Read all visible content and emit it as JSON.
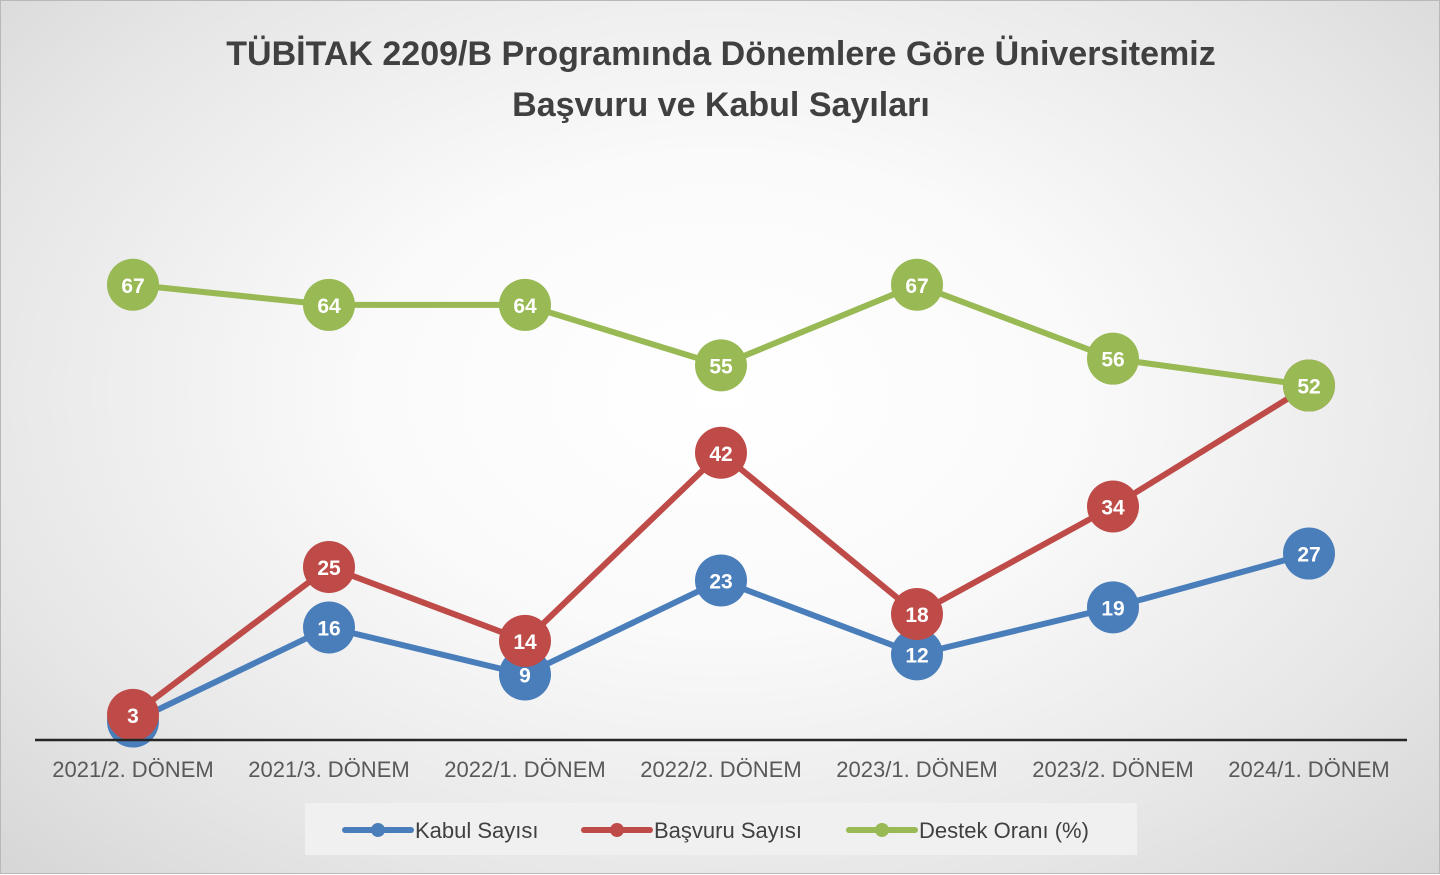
{
  "chart_data": {
    "type": "line",
    "title_lines": [
      "TÜBİTAK 2209/B Programında Dönemlere Göre Üniversitemiz",
      "Başvuru ve Kabul Sayıları"
    ],
    "categories": [
      "2021/2. DÖNEM",
      "2021/3. DÖNEM",
      "2022/1. DÖNEM",
      "2022/2. DÖNEM",
      "2023/1. DÖNEM",
      "2023/2. DÖNEM",
      "2024/1. DÖNEM"
    ],
    "series": [
      {
        "name": "Kabul Sayısı",
        "color": "#4a7ebb",
        "values": [
          2,
          16,
          9,
          23,
          12,
          19,
          27
        ]
      },
      {
        "name": "Başvuru Sayısı",
        "color": "#be4b48",
        "values": [
          3,
          25,
          14,
          42,
          18,
          34,
          52
        ]
      },
      {
        "name": "Destek Oranı (%)",
        "color": "#98b954",
        "values": [
          67,
          64,
          64,
          55,
          67,
          56,
          52
        ]
      }
    ],
    "ylim": [
      0,
      125
    ],
    "grid": false,
    "legend_position": "bottom"
  }
}
